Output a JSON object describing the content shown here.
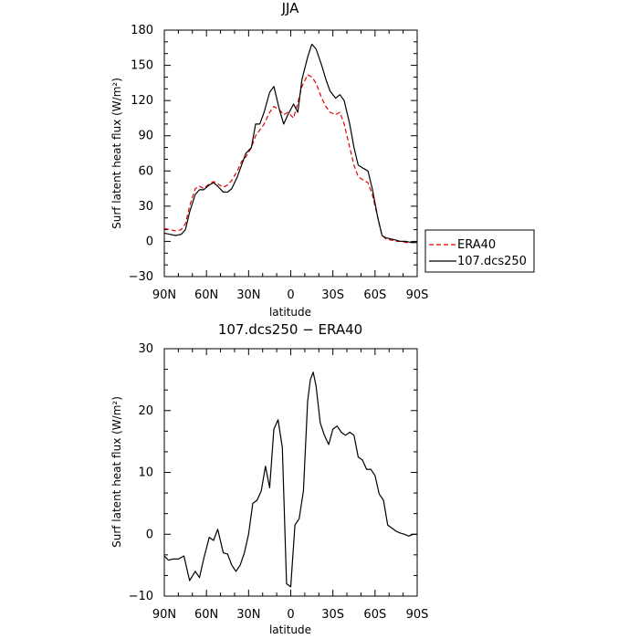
{
  "chart_data": [
    {
      "type": "line",
      "title": "JJA",
      "xlabel": "latitude",
      "ylabel": "Surf latent heat flux (W/m²)",
      "xlim": [
        90,
        -90
      ],
      "ylim": [
        -30,
        180
      ],
      "x_ticks": [
        90,
        60,
        30,
        0,
        -30,
        -60,
        -90
      ],
      "x_tick_labels": [
        "90N",
        "60N",
        "30N",
        "0",
        "30S",
        "60S",
        "90S"
      ],
      "y_ticks": [
        -30,
        0,
        30,
        60,
        90,
        120,
        150,
        180
      ],
      "y_tick_labels": [
        "−30",
        "0",
        "30",
        "60",
        "90",
        "120",
        "150",
        "180"
      ],
      "legend_position": "right",
      "series": [
        {
          "name": "ERA40",
          "color": "#e00000",
          "dash": "dashed",
          "x": [
            90,
            86,
            82,
            78,
            75,
            72,
            68,
            65,
            62,
            58,
            55,
            52,
            48,
            45,
            42,
            38,
            35,
            32,
            28,
            25,
            22,
            19,
            15,
            12,
            8,
            5,
            2,
            -2,
            -5,
            -8,
            -12,
            -15,
            -18,
            -22,
            -25,
            -28,
            -32,
            -35,
            -38,
            -42,
            -45,
            -48,
            -52,
            -55,
            -58,
            -62,
            -65,
            -68,
            -72,
            -75,
            -78,
            -82,
            -86,
            -90
          ],
          "y": [
            11,
            10,
            9,
            10,
            15,
            30,
            45,
            47,
            45,
            49,
            51,
            49,
            46,
            48,
            52,
            60,
            68,
            72,
            80,
            90,
            95,
            100,
            110,
            115,
            112,
            108,
            110,
            105,
            118,
            132,
            142,
            140,
            135,
            122,
            115,
            110,
            108,
            110,
            100,
            80,
            65,
            55,
            52,
            50,
            40,
            20,
            5,
            2,
            1,
            0,
            0,
            -1,
            -1,
            -1
          ]
        },
        {
          "name": "107.dcs250",
          "color": "#000000",
          "dash": "solid",
          "x": [
            90,
            86,
            82,
            78,
            75,
            72,
            68,
            65,
            62,
            58,
            55,
            52,
            48,
            45,
            42,
            38,
            35,
            32,
            28,
            25,
            22,
            19,
            15,
            12,
            8,
            5,
            2,
            -2,
            -5,
            -8,
            -12,
            -15,
            -18,
            -22,
            -25,
            -28,
            -32,
            -35,
            -38,
            -42,
            -45,
            -48,
            -52,
            -55,
            -58,
            -62,
            -65,
            -68,
            -72,
            -75,
            -78,
            -82,
            -86,
            -90
          ],
          "y": [
            7,
            6,
            5,
            6,
            10,
            25,
            40,
            44,
            44,
            48,
            50,
            47,
            42,
            42,
            45,
            55,
            65,
            75,
            80,
            100,
            100,
            110,
            127,
            132,
            112,
            100,
            108,
            117,
            110,
            138,
            157,
            168,
            164,
            150,
            138,
            128,
            122,
            125,
            120,
            100,
            80,
            65,
            62,
            60,
            45,
            20,
            5,
            3,
            2,
            1,
            0,
            0,
            -1,
            -1
          ]
        }
      ]
    },
    {
      "type": "line",
      "title": "107.dcs250 − ERA40",
      "xlabel": "latitude",
      "ylabel": "Surf latent heat flux (W/m²)",
      "xlim": [
        90,
        -90
      ],
      "ylim": [
        -10,
        30
      ],
      "x_ticks": [
        90,
        60,
        30,
        0,
        -30,
        -60,
        -90
      ],
      "x_tick_labels": [
        "90N",
        "60N",
        "30N",
        "0",
        "30S",
        "60S",
        "90S"
      ],
      "y_ticks": [
        -10,
        0,
        10,
        20,
        30
      ],
      "y_tick_labels": [
        "−10",
        "0",
        "10",
        "20",
        "30"
      ],
      "series": [
        {
          "color": "#000000",
          "dash": "solid",
          "x": [
            90,
            87,
            84,
            80,
            76,
            72,
            68,
            65,
            62,
            58,
            55,
            52,
            48,
            45,
            42,
            39,
            36,
            33,
            30,
            27,
            24,
            21,
            18,
            15,
            12,
            9,
            6,
            3,
            0,
            -3,
            -6,
            -9,
            -12,
            -14,
            -16,
            -18,
            -21,
            -24,
            -27,
            -30,
            -33,
            -36,
            -39,
            -42,
            -45,
            -48,
            -51,
            -54,
            -57,
            -60,
            -63,
            -66,
            -69,
            -72,
            -75,
            -78,
            -81,
            -84,
            -87,
            -90
          ],
          "y": [
            -3.5,
            -4.2,
            -4.0,
            -4.0,
            -3.5,
            -7.5,
            -6.0,
            -7.0,
            -4.0,
            -0.5,
            -1.0,
            0.8,
            -3.0,
            -3.2,
            -5.0,
            -6.0,
            -5.0,
            -3.0,
            0.0,
            5.0,
            5.5,
            7.0,
            11.0,
            7.5,
            17.0,
            18.5,
            14.0,
            -8.0,
            -8.5,
            1.5,
            2.5,
            7.0,
            21.5,
            25.0,
            26.2,
            24.0,
            18.0,
            16.0,
            14.5,
            17.0,
            17.5,
            16.5,
            16.0,
            16.5,
            16.0,
            12.5,
            12.0,
            10.5,
            10.5,
            9.5,
            6.5,
            5.5,
            1.5,
            1.0,
            0.5,
            0.2,
            0.0,
            -0.3,
            0.0,
            0.0
          ]
        }
      ]
    }
  ]
}
